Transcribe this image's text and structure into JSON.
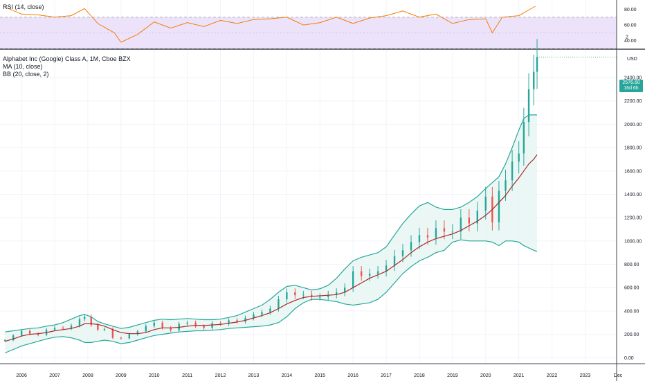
{
  "rsi_pane": {
    "legend": "RSI (14, close)",
    "ticks": [
      "80.00",
      "60.00",
      "40.00"
    ]
  },
  "main_pane": {
    "legend_title": "Alphabet Inc (Google) Class A, 1M, Cboe BZX",
    "legend_ma": "MA (10, close)",
    "legend_bb": "BB (20, close, 2)",
    "currency": "USD",
    "top_tick": "2",
    "last_price": "2576.60",
    "countdown": "16d 6h",
    "price_ticks": [
      "2400.00",
      "2200.00",
      "2000.00",
      "1800.00",
      "1600.00",
      "1400.00",
      "1200.00",
      "1000.00",
      "800.00",
      "600.00",
      "400.00",
      "200.00",
      "0.00"
    ]
  },
  "time_axis": {
    "labels": [
      "2006",
      "2007",
      "2008",
      "2009",
      "2010",
      "2011",
      "2012",
      "2013",
      "2014",
      "2015",
      "2016",
      "2017",
      "2018",
      "2019",
      "2020",
      "2021",
      "2022",
      "2023",
      "Dec"
    ]
  },
  "colors": {
    "up": "#26a69a",
    "down": "#ef5350",
    "ma": "#a52a2a",
    "bb": "#26a69a",
    "bb_fill": "#e6f5f3",
    "rsi_line": "#f57c00",
    "rsi_band": "#ece3fb",
    "grid": "#f0f3fa"
  },
  "chart_data": [
    {
      "type": "line",
      "title": "RSI (14, close)",
      "x": [
        2005.5,
        2006.0,
        2006.5,
        2007.0,
        2007.5,
        2007.9,
        2008.3,
        2008.8,
        2009.0,
        2009.5,
        2010.0,
        2010.5,
        2011.0,
        2011.5,
        2012.0,
        2012.5,
        2013.0,
        2013.5,
        2014.0,
        2014.5,
        2015.0,
        2015.5,
        2016.0,
        2016.5,
        2017.0,
        2017.5,
        2018.0,
        2018.5,
        2019.0,
        2019.5,
        2020.0,
        2020.2,
        2020.5,
        2021.0,
        2021.5
      ],
      "series": [
        {
          "values": [
            83,
            74,
            73,
            70,
            72,
            81,
            62,
            50,
            38,
            48,
            64,
            56,
            63,
            58,
            66,
            62,
            67,
            68,
            70,
            60,
            63,
            70,
            62,
            69,
            72,
            78,
            70,
            74,
            62,
            67,
            68,
            50,
            70,
            72,
            84
          ]
        }
      ],
      "ylim": [
        30,
        92
      ],
      "band": [
        30,
        70
      ]
    },
    {
      "type": "candlestick",
      "title": "Alphabet Inc (Google) Class A, 1M, Cboe BZX",
      "ylabel": "USD",
      "ylim": [
        -40,
        2620
      ],
      "x": [
        2005.5,
        2005.75,
        2006.0,
        2006.25,
        2006.5,
        2006.75,
        2007.0,
        2007.25,
        2007.5,
        2007.75,
        2007.9,
        2008.1,
        2008.3,
        2008.5,
        2008.75,
        2009.0,
        2009.25,
        2009.5,
        2009.75,
        2010.0,
        2010.25,
        2010.5,
        2010.75,
        2011.0,
        2011.25,
        2011.5,
        2011.75,
        2012.0,
        2012.25,
        2012.5,
        2012.75,
        2013.0,
        2013.25,
        2013.5,
        2013.75,
        2014.0,
        2014.25,
        2014.5,
        2014.75,
        2015.0,
        2015.25,
        2015.5,
        2015.75,
        2016.0,
        2016.25,
        2016.5,
        2016.75,
        2017.0,
        2017.25,
        2017.5,
        2017.75,
        2018.0,
        2018.25,
        2018.5,
        2018.75,
        2019.0,
        2019.25,
        2019.5,
        2019.75,
        2020.0,
        2020.2,
        2020.4,
        2020.6,
        2020.8,
        2021.0,
        2021.15,
        2021.3,
        2021.45,
        2021.55
      ],
      "series": [
        {
          "name": "Close",
          "values": [
            150,
            190,
            230,
            205,
            195,
            240,
            255,
            250,
            275,
            330,
            350,
            280,
            240,
            245,
            170,
            165,
            200,
            225,
            270,
            300,
            255,
            235,
            290,
            300,
            270,
            255,
            295,
            290,
            320,
            310,
            340,
            370,
            390,
            420,
            500,
            560,
            535,
            540,
            520,
            520,
            540,
            560,
            600,
            740,
            700,
            720,
            740,
            790,
            870,
            920,
            990,
            1050,
            1030,
            1110,
            1080,
            1080,
            1200,
            1150,
            1260,
            1380,
            1160,
            1430,
            1520,
            1680,
            1750,
            2020,
            2300,
            2450,
            2576.6
          ]
        },
        {
          "name": "MA (10, close)",
          "values": [
            140,
            160,
            185,
            200,
            205,
            215,
            230,
            240,
            250,
            270,
            290,
            290,
            285,
            270,
            240,
            215,
            205,
            205,
            215,
            240,
            255,
            255,
            260,
            270,
            275,
            275,
            280,
            285,
            295,
            305,
            320,
            340,
            360,
            385,
            420,
            460,
            490,
            515,
            525,
            530,
            535,
            540,
            560,
            600,
            640,
            680,
            710,
            740,
            790,
            840,
            900,
            950,
            990,
            1020,
            1040,
            1060,
            1090,
            1130,
            1170,
            1220,
            1270,
            1330,
            1390,
            1470,
            1540,
            1600,
            1660,
            1700,
            1740
          ]
        },
        {
          "name": "BB upper",
          "values": [
            220,
            230,
            240,
            250,
            255,
            270,
            280,
            300,
            330,
            360,
            370,
            350,
            310,
            290,
            270,
            250,
            260,
            280,
            300,
            320,
            330,
            325,
            330,
            335,
            330,
            325,
            325,
            330,
            345,
            360,
            390,
            420,
            450,
            500,
            560,
            610,
            620,
            600,
            580,
            590,
            620,
            680,
            760,
            830,
            860,
            880,
            900,
            950,
            1050,
            1150,
            1230,
            1300,
            1330,
            1290,
            1270,
            1270,
            1290,
            1330,
            1380,
            1450,
            1500,
            1550,
            1660,
            1800,
            1950,
            2050,
            2080,
            2080,
            2080
          ]
        },
        {
          "name": "BB lower",
          "values": [
            40,
            70,
            100,
            120,
            140,
            160,
            175,
            180,
            170,
            150,
            130,
            130,
            140,
            150,
            140,
            120,
            130,
            150,
            170,
            190,
            200,
            210,
            220,
            225,
            230,
            230,
            235,
            240,
            250,
            255,
            260,
            265,
            270,
            280,
            300,
            350,
            420,
            470,
            500,
            500,
            490,
            480,
            460,
            450,
            460,
            470,
            500,
            560,
            640,
            720,
            780,
            830,
            860,
            900,
            920,
            990,
            1010,
            1000,
            1000,
            1000,
            990,
            960,
            1000,
            1000,
            990,
            960,
            940,
            920,
            910
          ]
        }
      ]
    }
  ]
}
